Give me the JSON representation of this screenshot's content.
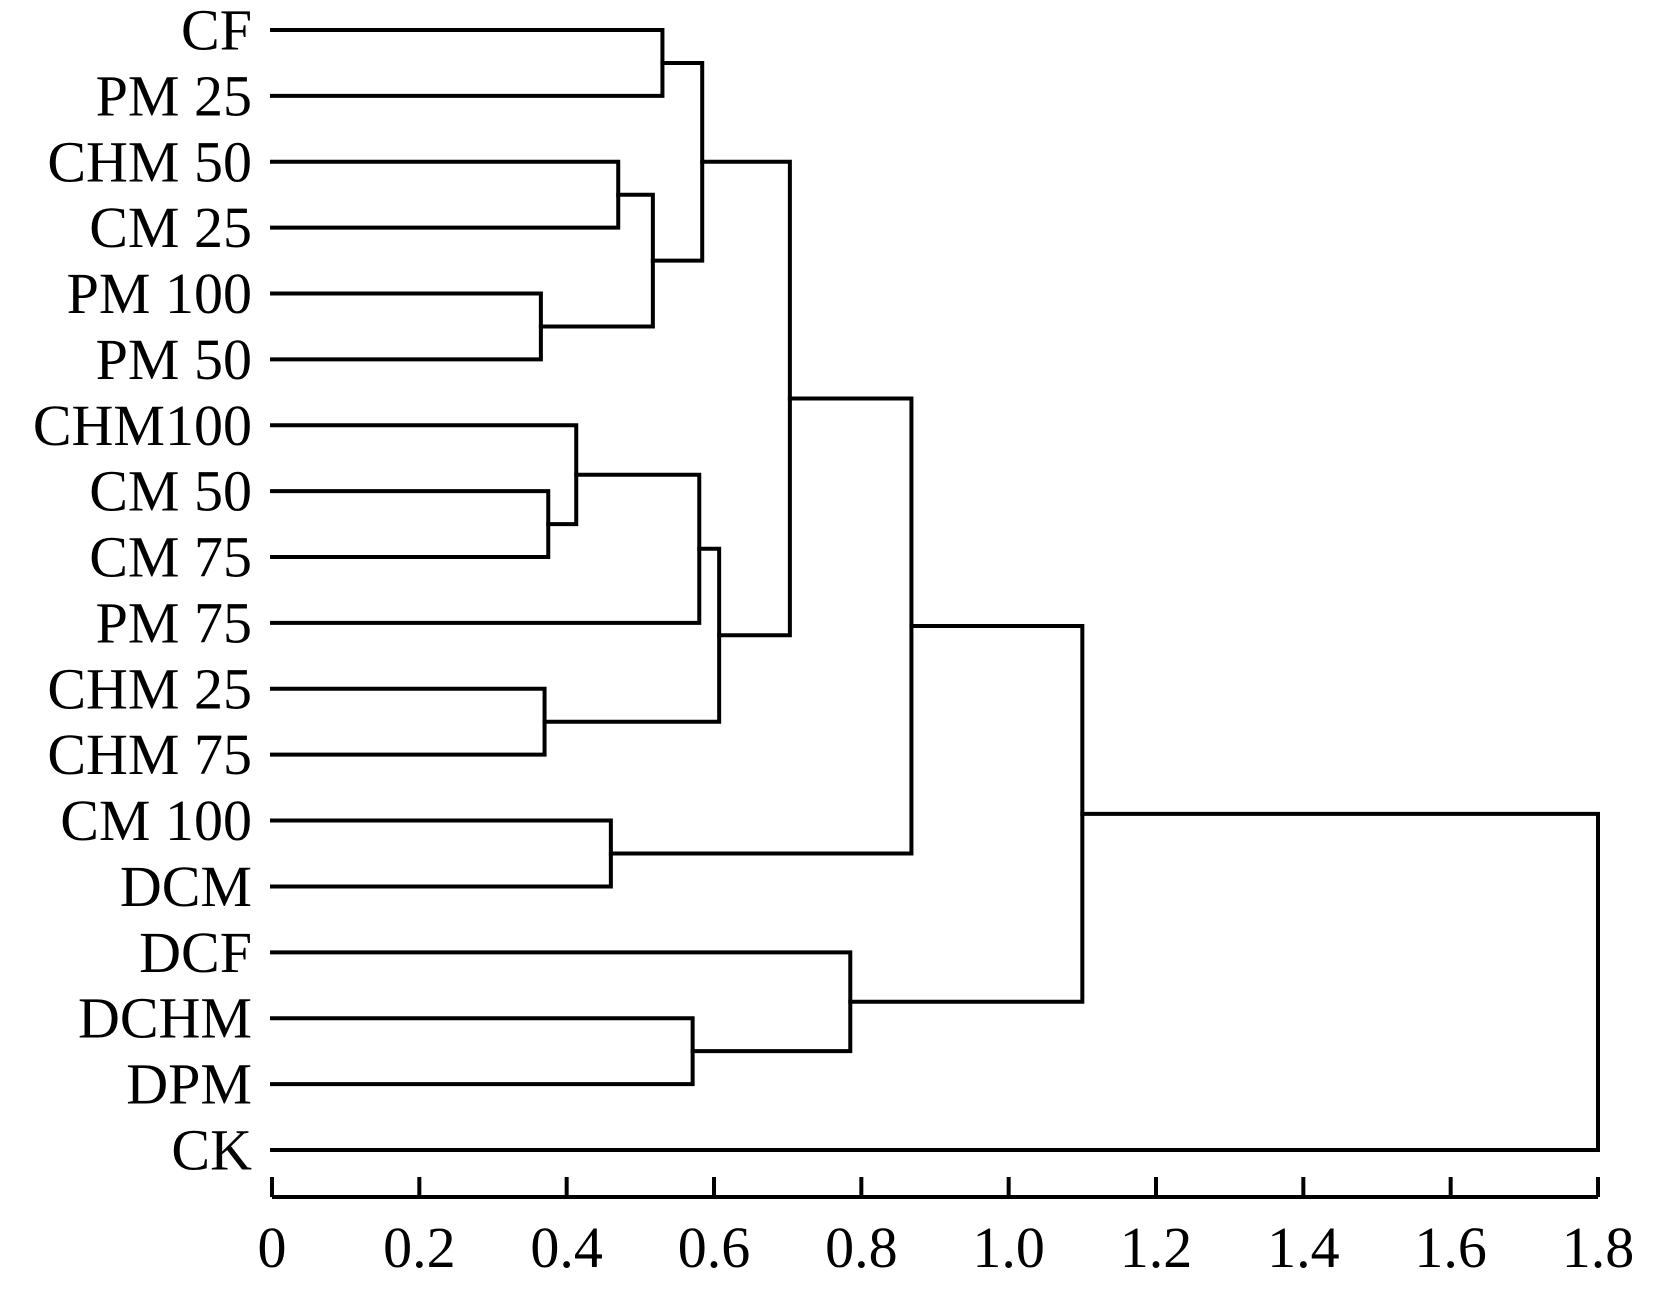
{
  "chart_data": {
    "type": "dendrogram",
    "orientation": "horizontal",
    "leaves": [
      "CF",
      "PM 25",
      "CHM 50",
      "CM 25",
      "PM 100",
      "PM 50",
      "CHM100",
      "CM 50",
      "CM 75",
      "PM 75",
      "CHM 25",
      "CHM 75",
      "CM 100",
      "DCM",
      "DCF",
      "DCHM",
      "DPM",
      "CK"
    ],
    "merges": [
      {
        "left": "L4",
        "right": "L5",
        "height": 0.365
      },
      {
        "left": "L10",
        "right": "L11",
        "height": 0.37
      },
      {
        "left": "L7",
        "right": "L8",
        "height": 0.375
      },
      {
        "left": "L6",
        "right": "C2",
        "height": 0.413
      },
      {
        "left": "L12",
        "right": "L13",
        "height": 0.46
      },
      {
        "left": "L2",
        "right": "L3",
        "height": 0.47
      },
      {
        "left": "C5",
        "right": "C0",
        "height": 0.517
      },
      {
        "left": "L0",
        "right": "L1",
        "height": 0.53
      },
      {
        "left": "L15",
        "right": "L16",
        "height": 0.571
      },
      {
        "left": "C3",
        "right": "L9",
        "height": 0.58
      },
      {
        "left": "C7",
        "right": "C6",
        "height": 0.584
      },
      {
        "left": "C9",
        "right": "C1",
        "height": 0.607
      },
      {
        "left": "C10",
        "right": "C11",
        "height": 0.703
      },
      {
        "left": "L14",
        "right": "C8",
        "height": 0.785
      },
      {
        "left": "C12",
        "right": "C4",
        "height": 0.868
      },
      {
        "left": "C14",
        "right": "C13",
        "height": 1.1
      },
      {
        "left": "C15",
        "right": "L17",
        "height": 1.8
      }
    ],
    "x_ticks": [
      "0",
      "0.2",
      "0.4",
      "0.6",
      "0.8",
      "1.0",
      "1.2",
      "1.4",
      "1.6",
      "1.8"
    ],
    "x_tick_values": [
      0,
      0.2,
      0.4,
      0.6,
      0.8,
      1.0,
      1.2,
      1.4,
      1.6,
      1.8
    ],
    "xlim": [
      0,
      1.8
    ]
  }
}
